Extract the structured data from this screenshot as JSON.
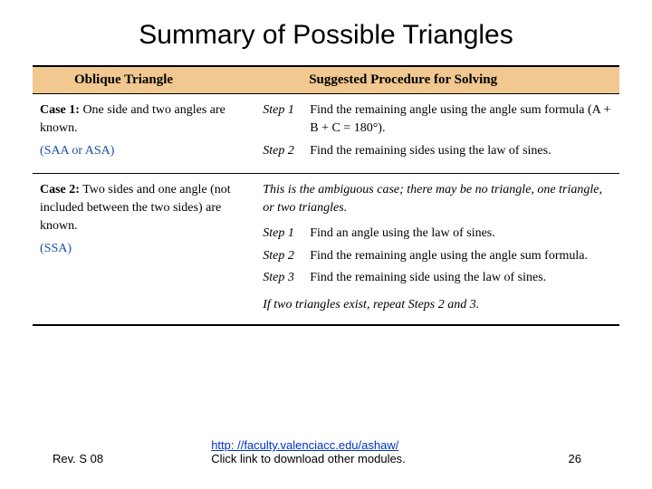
{
  "title": "Summary of Possible Triangles",
  "table": {
    "header_bg": "#f0c890",
    "border_color": "#000000",
    "col1_header": "Oblique Triangle",
    "col2_header": "Suggested Procedure for Solving",
    "rows": [
      {
        "case_label": "Case 1:",
        "case_desc": "One side and two angles are known.",
        "case_code": "(SAA or ASA)",
        "ambiguous": "",
        "steps": [
          {
            "label": "Step 1",
            "text": "Find the remaining angle using the angle sum formula (A + B + C = 180°)."
          },
          {
            "label": "Step 2",
            "text": "Find the remaining sides using the law of sines."
          }
        ],
        "repeat_note": ""
      },
      {
        "case_label": "Case 2:",
        "case_desc": "Two sides and one angle (not included between the two sides) are known.",
        "case_code": "(SSA)",
        "ambiguous": "This is the ambiguous case; there may be no triangle, one triangle, or two triangles.",
        "steps": [
          {
            "label": "Step 1",
            "text": "Find an angle using the law of sines."
          },
          {
            "label": "Step 2",
            "text": "Find the remaining angle using the angle sum formula."
          },
          {
            "label": "Step 3",
            "text": "Find the remaining side using the law of sines."
          }
        ],
        "repeat_note": "If two triangles exist, repeat Steps 2 and 3."
      }
    ]
  },
  "footer": {
    "rev": "Rev. S 08",
    "link_text": "http: //faculty.valenciacc.edu/ashaw/",
    "link_sub": "Click link to download other modules.",
    "page_num": "26"
  },
  "colors": {
    "link_color": "#0033cc",
    "case_code_color": "#1a4fa0"
  }
}
